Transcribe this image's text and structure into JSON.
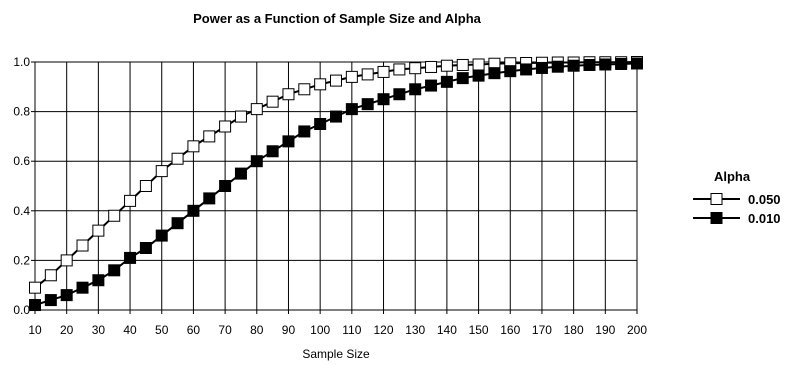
{
  "chart_data": {
    "type": "line",
    "title": "Power as a Function of Sample Size and Alpha",
    "xlabel": "Sample Size",
    "ylabel": "",
    "xlim": [
      10,
      200
    ],
    "ylim": [
      0,
      1
    ],
    "x_ticks": [
      10,
      20,
      30,
      40,
      50,
      60,
      70,
      80,
      90,
      100,
      110,
      120,
      130,
      140,
      150,
      160,
      170,
      180,
      190,
      200
    ],
    "y_ticks": [
      "0.0",
      "0.2",
      "0.4",
      "0.6",
      "0.8",
      "1.0"
    ],
    "grid": true,
    "legend_title": "Alpha",
    "legend_position": "right",
    "x": [
      10,
      15,
      20,
      25,
      30,
      35,
      40,
      45,
      50,
      55,
      60,
      65,
      70,
      75,
      80,
      85,
      90,
      95,
      100,
      105,
      110,
      115,
      120,
      125,
      130,
      135,
      140,
      145,
      150,
      155,
      160,
      165,
      170,
      175,
      180,
      185,
      190,
      195,
      200
    ],
    "series": [
      {
        "name": "0.050",
        "marker": "open-square",
        "values": [
          0.09,
          0.14,
          0.2,
          0.26,
          0.32,
          0.38,
          0.44,
          0.5,
          0.56,
          0.61,
          0.66,
          0.7,
          0.74,
          0.78,
          0.81,
          0.84,
          0.87,
          0.89,
          0.91,
          0.925,
          0.94,
          0.95,
          0.96,
          0.97,
          0.975,
          0.98,
          0.985,
          0.988,
          0.99,
          0.993,
          0.995,
          0.996,
          0.997,
          0.998,
          0.998,
          0.999,
          0.999,
          0.999,
          1.0
        ]
      },
      {
        "name": "0.010",
        "marker": "filled-square",
        "values": [
          0.02,
          0.04,
          0.06,
          0.09,
          0.12,
          0.16,
          0.21,
          0.25,
          0.3,
          0.35,
          0.4,
          0.45,
          0.5,
          0.55,
          0.6,
          0.64,
          0.68,
          0.72,
          0.75,
          0.78,
          0.81,
          0.83,
          0.85,
          0.87,
          0.89,
          0.905,
          0.92,
          0.935,
          0.945,
          0.955,
          0.963,
          0.97,
          0.976,
          0.981,
          0.985,
          0.988,
          0.99,
          0.992,
          0.994
        ]
      }
    ]
  }
}
